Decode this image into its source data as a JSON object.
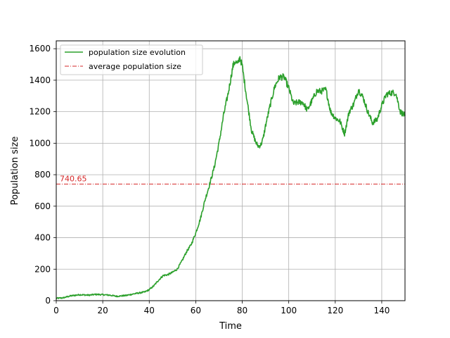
{
  "chart_data": {
    "type": "line",
    "title": "",
    "xlabel": "Time",
    "ylabel": "Population size",
    "xlim": [
      0,
      150
    ],
    "ylim": [
      0,
      1650
    ],
    "xticks": [
      0,
      20,
      40,
      60,
      80,
      100,
      120,
      140
    ],
    "yticks": [
      0,
      200,
      400,
      600,
      800,
      1000,
      1200,
      1400,
      1600
    ],
    "grid": true,
    "legend_position": "top-left",
    "series": [
      {
        "name": "population size evolution",
        "color": "#2ca02c",
        "style": "solid",
        "x": [
          0,
          3,
          6,
          10,
          14,
          17,
          20,
          23,
          26,
          30,
          34,
          38,
          40,
          42,
          44,
          46,
          48,
          50,
          52,
          54,
          56,
          58,
          60,
          62,
          64,
          66,
          68,
          70,
          72,
          74,
          76,
          77,
          78,
          79,
          80,
          82,
          84,
          86,
          87,
          88,
          89,
          90,
          92,
          94,
          96,
          98,
          100,
          102,
          104,
          106,
          108,
          110,
          112,
          114,
          116,
          118,
          120,
          122,
          124,
          126,
          128,
          130,
          132,
          134,
          136,
          138,
          140,
          142,
          144,
          146,
          148,
          150
        ],
        "y": [
          15,
          18,
          30,
          38,
          35,
          40,
          38,
          35,
          28,
          33,
          45,
          55,
          70,
          95,
          130,
          160,
          165,
          180,
          200,
          250,
          310,
          355,
          430,
          520,
          640,
          740,
          850,
          1000,
          1180,
          1320,
          1490,
          1520,
          1500,
          1545,
          1490,
          1280,
          1080,
          1000,
          980,
          990,
          1030,
          1110,
          1240,
          1360,
          1420,
          1420,
          1350,
          1250,
          1260,
          1260,
          1210,
          1270,
          1330,
          1330,
          1340,
          1200,
          1160,
          1140,
          1060,
          1200,
          1250,
          1340,
          1290,
          1200,
          1130,
          1150,
          1240,
          1310,
          1320,
          1320,
          1200,
          1175
        ]
      },
      {
        "name": "average population size",
        "color": "#d62728",
        "style": "dashdot",
        "constant": 740.65
      }
    ],
    "annotations": [
      {
        "text": "740.65",
        "color": "#d62728"
      }
    ]
  }
}
